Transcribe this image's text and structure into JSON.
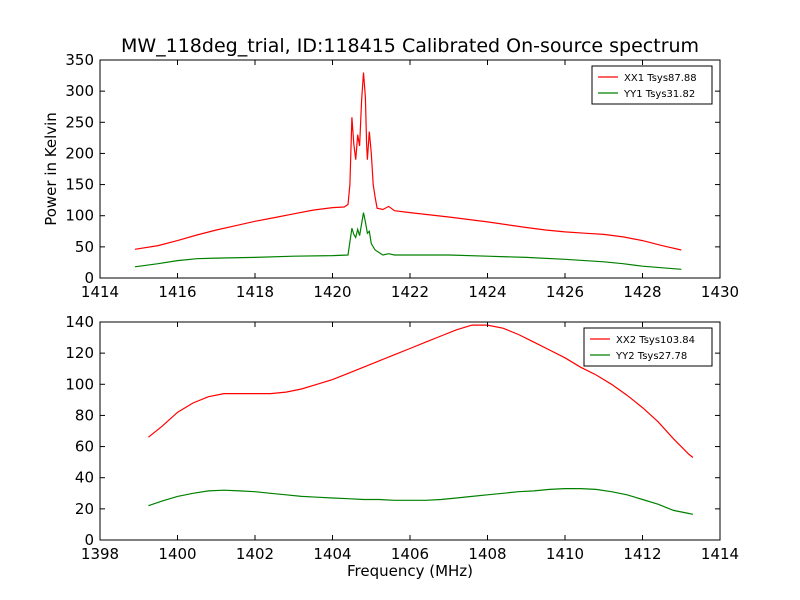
{
  "title": "MW_118deg_trial, ID:118415 Calibrated On-source spectrum",
  "chart_data": [
    {
      "type": "line",
      "ylabel": "Power in Kelvin",
      "xlabel": "",
      "xlim": [
        1414,
        1430
      ],
      "ylim": [
        0,
        350
      ],
      "xticks": [
        1414,
        1416,
        1418,
        1420,
        1422,
        1424,
        1426,
        1428,
        1430
      ],
      "yticks": [
        0,
        50,
        100,
        150,
        200,
        250,
        300,
        350
      ],
      "grid": false,
      "legend": "top-right",
      "series": [
        {
          "name": "XX1 Tsys87.88",
          "color": "#ff0000",
          "points": [
            [
              1414.9,
              46
            ],
            [
              1415.5,
              52
            ],
            [
              1416,
              60
            ],
            [
              1416.5,
              69
            ],
            [
              1417,
              77
            ],
            [
              1417.5,
              84
            ],
            [
              1418,
              91
            ],
            [
              1418.5,
              97
            ],
            [
              1419,
              103
            ],
            [
              1419.5,
              109
            ],
            [
              1420,
              113
            ],
            [
              1420.3,
              114
            ],
            [
              1420.4,
              118
            ],
            [
              1420.45,
              150
            ],
            [
              1420.5,
              258
            ],
            [
              1420.55,
              215
            ],
            [
              1420.6,
              190
            ],
            [
              1420.65,
              230
            ],
            [
              1420.7,
              212
            ],
            [
              1420.75,
              285
            ],
            [
              1420.8,
              330
            ],
            [
              1420.85,
              290
            ],
            [
              1420.88,
              215
            ],
            [
              1420.9,
              190
            ],
            [
              1420.95,
              235
            ],
            [
              1421.0,
              200
            ],
            [
              1421.05,
              150
            ],
            [
              1421.1,
              130
            ],
            [
              1421.15,
              112
            ],
            [
              1421.3,
              110
            ],
            [
              1421.45,
              115
            ],
            [
              1421.6,
              108
            ],
            [
              1422,
              105
            ],
            [
              1423,
              98
            ],
            [
              1424,
              90
            ],
            [
              1425,
              81
            ],
            [
              1425.5,
              77
            ],
            [
              1426,
              74
            ],
            [
              1426.5,
              72
            ],
            [
              1427,
              70
            ],
            [
              1427.5,
              66
            ],
            [
              1428,
              60
            ],
            [
              1428.5,
              52
            ],
            [
              1429,
              45
            ]
          ]
        },
        {
          "name": "YY1 Tsys31.82",
          "color": "#008000",
          "points": [
            [
              1414.9,
              18
            ],
            [
              1415.5,
              23
            ],
            [
              1416,
              28
            ],
            [
              1416.5,
              31
            ],
            [
              1417,
              32
            ],
            [
              1418,
              33
            ],
            [
              1419,
              35
            ],
            [
              1420,
              36
            ],
            [
              1420.4,
              37
            ],
            [
              1420.5,
              80
            ],
            [
              1420.55,
              70
            ],
            [
              1420.6,
              65
            ],
            [
              1420.65,
              78
            ],
            [
              1420.7,
              68
            ],
            [
              1420.8,
              105
            ],
            [
              1420.85,
              90
            ],
            [
              1420.9,
              72
            ],
            [
              1420.95,
              75
            ],
            [
              1421.0,
              55
            ],
            [
              1421.1,
              45
            ],
            [
              1421.3,
              37
            ],
            [
              1421.45,
              39
            ],
            [
              1421.6,
              37
            ],
            [
              1422,
              37
            ],
            [
              1423,
              37
            ],
            [
              1424,
              35
            ],
            [
              1425,
              33
            ],
            [
              1426,
              30
            ],
            [
              1427,
              26
            ],
            [
              1427.5,
              23
            ],
            [
              1428,
              19
            ],
            [
              1429,
              14
            ]
          ]
        }
      ]
    },
    {
      "type": "line",
      "ylabel": "",
      "xlabel": "Frequency (MHz)",
      "xlim": [
        1398,
        1414
      ],
      "ylim": [
        0,
        140
      ],
      "xticks": [
        1398,
        1400,
        1402,
        1404,
        1406,
        1408,
        1410,
        1412,
        1414
      ],
      "yticks": [
        0,
        20,
        40,
        60,
        80,
        100,
        120,
        140
      ],
      "grid": false,
      "legend": "top-right",
      "series": [
        {
          "name": "XX2 Tsys103.84",
          "color": "#ff0000",
          "points": [
            [
              1399.25,
              66
            ],
            [
              1399.6,
              73
            ],
            [
              1400,
              82
            ],
            [
              1400.4,
              88
            ],
            [
              1400.8,
              92
            ],
            [
              1401.2,
              94
            ],
            [
              1401.6,
              94
            ],
            [
              1402,
              94
            ],
            [
              1402.4,
              94
            ],
            [
              1402.8,
              95
            ],
            [
              1403.2,
              97
            ],
            [
              1403.6,
              100
            ],
            [
              1404,
              103
            ],
            [
              1404.4,
              107
            ],
            [
              1404.8,
              111
            ],
            [
              1405.2,
              115
            ],
            [
              1405.6,
              119
            ],
            [
              1406,
              123
            ],
            [
              1406.4,
              127
            ],
            [
              1406.8,
              131
            ],
            [
              1407.2,
              135
            ],
            [
              1407.6,
              138
            ],
            [
              1408,
              138
            ],
            [
              1408.4,
              136
            ],
            [
              1408.8,
              132
            ],
            [
              1409.2,
              127
            ],
            [
              1409.6,
              122
            ],
            [
              1410,
              117
            ],
            [
              1410.4,
              111
            ],
            [
              1410.8,
              106
            ],
            [
              1411.2,
              100
            ],
            [
              1411.6,
              93
            ],
            [
              1412,
              85
            ],
            [
              1412.4,
              76
            ],
            [
              1412.8,
              65
            ],
            [
              1413.2,
              55
            ],
            [
              1413.3,
              53
            ]
          ]
        },
        {
          "name": "YY2 Tsys27.78",
          "color": "#008000",
          "points": [
            [
              1399.25,
              22
            ],
            [
              1399.6,
              25
            ],
            [
              1400,
              28
            ],
            [
              1400.4,
              30
            ],
            [
              1400.8,
              31.5
            ],
            [
              1401.2,
              32
            ],
            [
              1401.6,
              31.5
            ],
            [
              1402,
              31
            ],
            [
              1402.4,
              30
            ],
            [
              1402.8,
              29
            ],
            [
              1403.2,
              28
            ],
            [
              1403.6,
              27.5
            ],
            [
              1404,
              27
            ],
            [
              1404.4,
              26.5
            ],
            [
              1404.8,
              26
            ],
            [
              1405.2,
              26
            ],
            [
              1405.6,
              25.5
            ],
            [
              1406,
              25.5
            ],
            [
              1406.4,
              25.5
            ],
            [
              1406.8,
              26
            ],
            [
              1407.2,
              27
            ],
            [
              1407.6,
              28
            ],
            [
              1408,
              29
            ],
            [
              1408.4,
              30
            ],
            [
              1408.8,
              31
            ],
            [
              1409.2,
              31.5
            ],
            [
              1409.6,
              32.5
            ],
            [
              1410,
              33
            ],
            [
              1410.4,
              33
            ],
            [
              1410.8,
              32.5
            ],
            [
              1411.2,
              31
            ],
            [
              1411.6,
              29
            ],
            [
              1412,
              26
            ],
            [
              1412.4,
              23
            ],
            [
              1412.8,
              19
            ],
            [
              1413.2,
              17
            ],
            [
              1413.3,
              16.5
            ]
          ]
        }
      ]
    }
  ]
}
